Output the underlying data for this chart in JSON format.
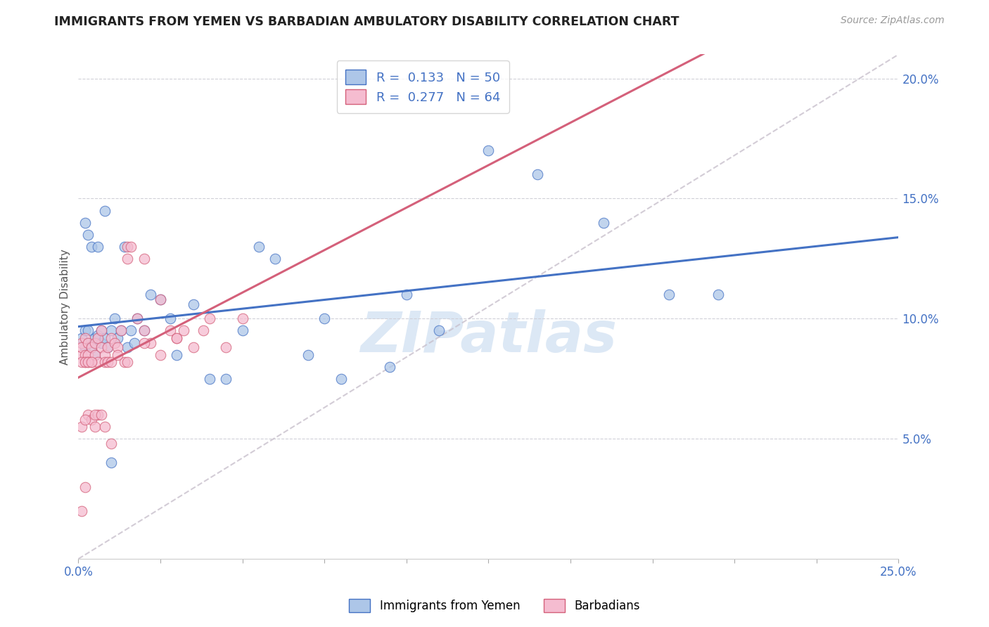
{
  "title": "IMMIGRANTS FROM YEMEN VS BARBADIAN AMBULATORY DISABILITY CORRELATION CHART",
  "source": "Source: ZipAtlas.com",
  "ylabel": "Ambulatory Disability",
  "xlim": [
    0.0,
    0.25
  ],
  "ylim": [
    0.0,
    0.21
  ],
  "xticks_minor": [
    0.0,
    0.025,
    0.05,
    0.075,
    0.1,
    0.125,
    0.15,
    0.175,
    0.2,
    0.225,
    0.25
  ],
  "xtick_labeled": {
    "0.0": "0.0%",
    "0.25": "25.0%"
  },
  "ytick_right": [
    0.05,
    0.1,
    0.15,
    0.2
  ],
  "yticklabels_right": [
    "5.0%",
    "10.0%",
    "15.0%",
    "20.0%"
  ],
  "legend_r1": "0.133",
  "legend_n1": "50",
  "legend_r2": "0.277",
  "legend_n2": "64",
  "color_blue": "#adc6e8",
  "color_pink": "#f5bcd0",
  "line_blue": "#4472c4",
  "line_pink": "#d4607a",
  "line_dashed_color": "#c8c0cc",
  "watermark": "ZIPatlas",
  "watermark_color": "#dce8f5",
  "scatter_blue_x": [
    0.001,
    0.002,
    0.002,
    0.003,
    0.003,
    0.004,
    0.005,
    0.005,
    0.006,
    0.007,
    0.007,
    0.008,
    0.009,
    0.01,
    0.011,
    0.012,
    0.013,
    0.014,
    0.015,
    0.016,
    0.017,
    0.018,
    0.02,
    0.022,
    0.025,
    0.028,
    0.03,
    0.035,
    0.04,
    0.045,
    0.05,
    0.055,
    0.06,
    0.07,
    0.075,
    0.08,
    0.095,
    0.1,
    0.11,
    0.125,
    0.14,
    0.16,
    0.18,
    0.195,
    0.002,
    0.003,
    0.004,
    0.006,
    0.008,
    0.01
  ],
  "scatter_blue_y": [
    0.092,
    0.095,
    0.088,
    0.09,
    0.095,
    0.088,
    0.092,
    0.085,
    0.093,
    0.09,
    0.095,
    0.092,
    0.088,
    0.095,
    0.1,
    0.092,
    0.095,
    0.13,
    0.088,
    0.095,
    0.09,
    0.1,
    0.095,
    0.11,
    0.108,
    0.1,
    0.085,
    0.106,
    0.075,
    0.075,
    0.095,
    0.13,
    0.125,
    0.085,
    0.1,
    0.075,
    0.08,
    0.11,
    0.095,
    0.17,
    0.16,
    0.14,
    0.11,
    0.11,
    0.14,
    0.135,
    0.13,
    0.13,
    0.145,
    0.04
  ],
  "scatter_pink_x": [
    0.001,
    0.001,
    0.001,
    0.002,
    0.002,
    0.002,
    0.003,
    0.003,
    0.003,
    0.004,
    0.004,
    0.005,
    0.005,
    0.006,
    0.006,
    0.007,
    0.007,
    0.008,
    0.008,
    0.009,
    0.009,
    0.01,
    0.01,
    0.011,
    0.012,
    0.013,
    0.014,
    0.015,
    0.016,
    0.018,
    0.02,
    0.022,
    0.025,
    0.028,
    0.03,
    0.032,
    0.035,
    0.038,
    0.04,
    0.045,
    0.05,
    0.003,
    0.004,
    0.005,
    0.006,
    0.008,
    0.01,
    0.012,
    0.015,
    0.02,
    0.025,
    0.03,
    0.015,
    0.02,
    0.001,
    0.002,
    0.001,
    0.003,
    0.002,
    0.004,
    0.005,
    0.007,
    0.001,
    0.002
  ],
  "scatter_pink_y": [
    0.09,
    0.085,
    0.088,
    0.092,
    0.085,
    0.082,
    0.09,
    0.085,
    0.082,
    0.088,
    0.082,
    0.09,
    0.085,
    0.092,
    0.082,
    0.095,
    0.088,
    0.085,
    0.082,
    0.088,
    0.082,
    0.092,
    0.082,
    0.09,
    0.088,
    0.095,
    0.082,
    0.13,
    0.13,
    0.1,
    0.095,
    0.09,
    0.108,
    0.095,
    0.092,
    0.095,
    0.088,
    0.095,
    0.1,
    0.088,
    0.1,
    0.06,
    0.058,
    0.055,
    0.06,
    0.055,
    0.048,
    0.085,
    0.082,
    0.09,
    0.085,
    0.092,
    0.125,
    0.125,
    0.082,
    0.082,
    0.055,
    0.082,
    0.058,
    0.082,
    0.06,
    0.06,
    0.02,
    0.03
  ]
}
